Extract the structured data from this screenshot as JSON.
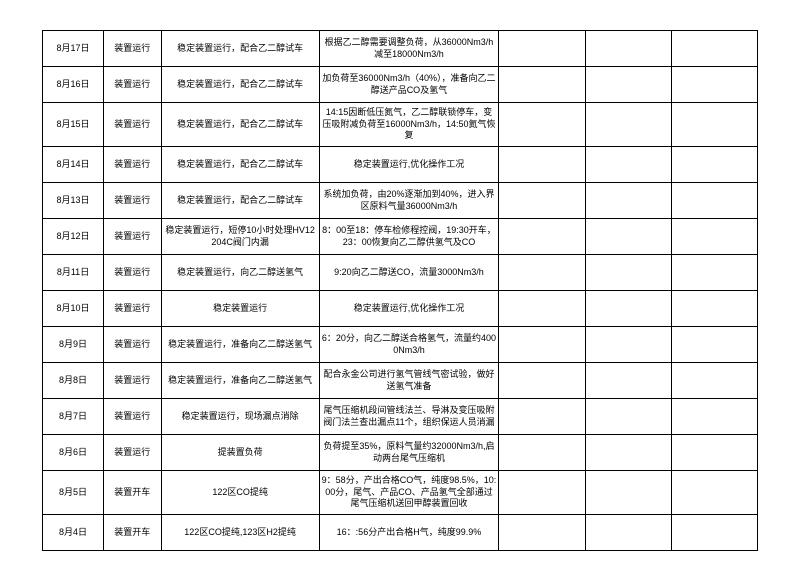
{
  "rows": [
    {
      "date": "8月17日",
      "status": "装置运行",
      "action": "稳定装置运行，配合乙二醇试车",
      "detail": "根据乙二醇需要调整负荷，从36000Nm3/h减至18000Nm3/h"
    },
    {
      "date": "8月16日",
      "status": "装置运行",
      "action": "稳定装置运行，配合乙二醇试车",
      "detail": "加负荷至36000Nm3/h（40%），准备向乙二醇送产品CO及氢气"
    },
    {
      "date": "8月15日",
      "status": "装置运行",
      "action": "稳定装置运行，配合乙二醇试车",
      "detail": "14:15因断低压氮气，乙二醇联锁停车，变压吸附减负荷至16000Nm3/h，14:50氮气恢复"
    },
    {
      "date": "8月14日",
      "status": "装置运行",
      "action": "稳定装置运行，配合乙二醇试车",
      "detail": "稳定装置运行,优化操作工况"
    },
    {
      "date": "8月13日",
      "status": "装置运行",
      "action": "稳定装置运行，配合乙二醇试车",
      "detail": "系统加负荷，由20%逐渐加到40%，进入界区原料气量36000Nm3/h"
    },
    {
      "date": "8月12日",
      "status": "装置运行",
      "action": "稳定装置运行，短停10小时处理HV12204C阀门内漏",
      "detail": "8：00至18：停车检修程控阀，19:30开车，23：00恢复向乙二醇供氢气及CO"
    },
    {
      "date": "8月11日",
      "status": "装置运行",
      "action": "稳定装置运行，向乙二醇送氢气",
      "detail": "9:20向乙二醇送CO，流量3000Nm3/h"
    },
    {
      "date": "8月10日",
      "status": "装置运行",
      "action": "稳定装置运行",
      "detail": "稳定装置运行,优化操作工况"
    },
    {
      "date": "8月9日",
      "status": "装置运行",
      "action": "稳定装置运行，准备向乙二醇送氢气",
      "detail": "6：20分，向乙二醇送合格氢气，流量约4000Nm3/h"
    },
    {
      "date": "8月8日",
      "status": "装置运行",
      "action": "稳定装置运行，准备向乙二醇送氢气",
      "detail": "配合永金公司进行氢气管线气密试验，做好送氢气准备"
    },
    {
      "date": "8月7日",
      "status": "装置运行",
      "action": "稳定装置运行，现场漏点消除",
      "detail": "尾气压缩机段间管线法兰、导淋及变压吸附阀门法兰查出漏点11个，组织保运人员消漏"
    },
    {
      "date": "8月6日",
      "status": "装置运行",
      "action": "提装置负荷",
      "detail": "负荷提至35%，原料气量约32000Nm3/h,启动两台尾气压缩机"
    },
    {
      "date": "8月5日",
      "status": "装置开车",
      "action": "122区CO提纯",
      "detail": "9：58分，产出合格CO气，纯度98.5%，10:00分，尾气、产品CO、产品氢气全部通过尾气压缩机送回甲醇装置回收"
    },
    {
      "date": "8月4日",
      "status": "装置开车",
      "action": "122区CO提纯,123区H2提纯",
      "detail": "16：:56分产出合格H气，纯度99.9%"
    }
  ]
}
